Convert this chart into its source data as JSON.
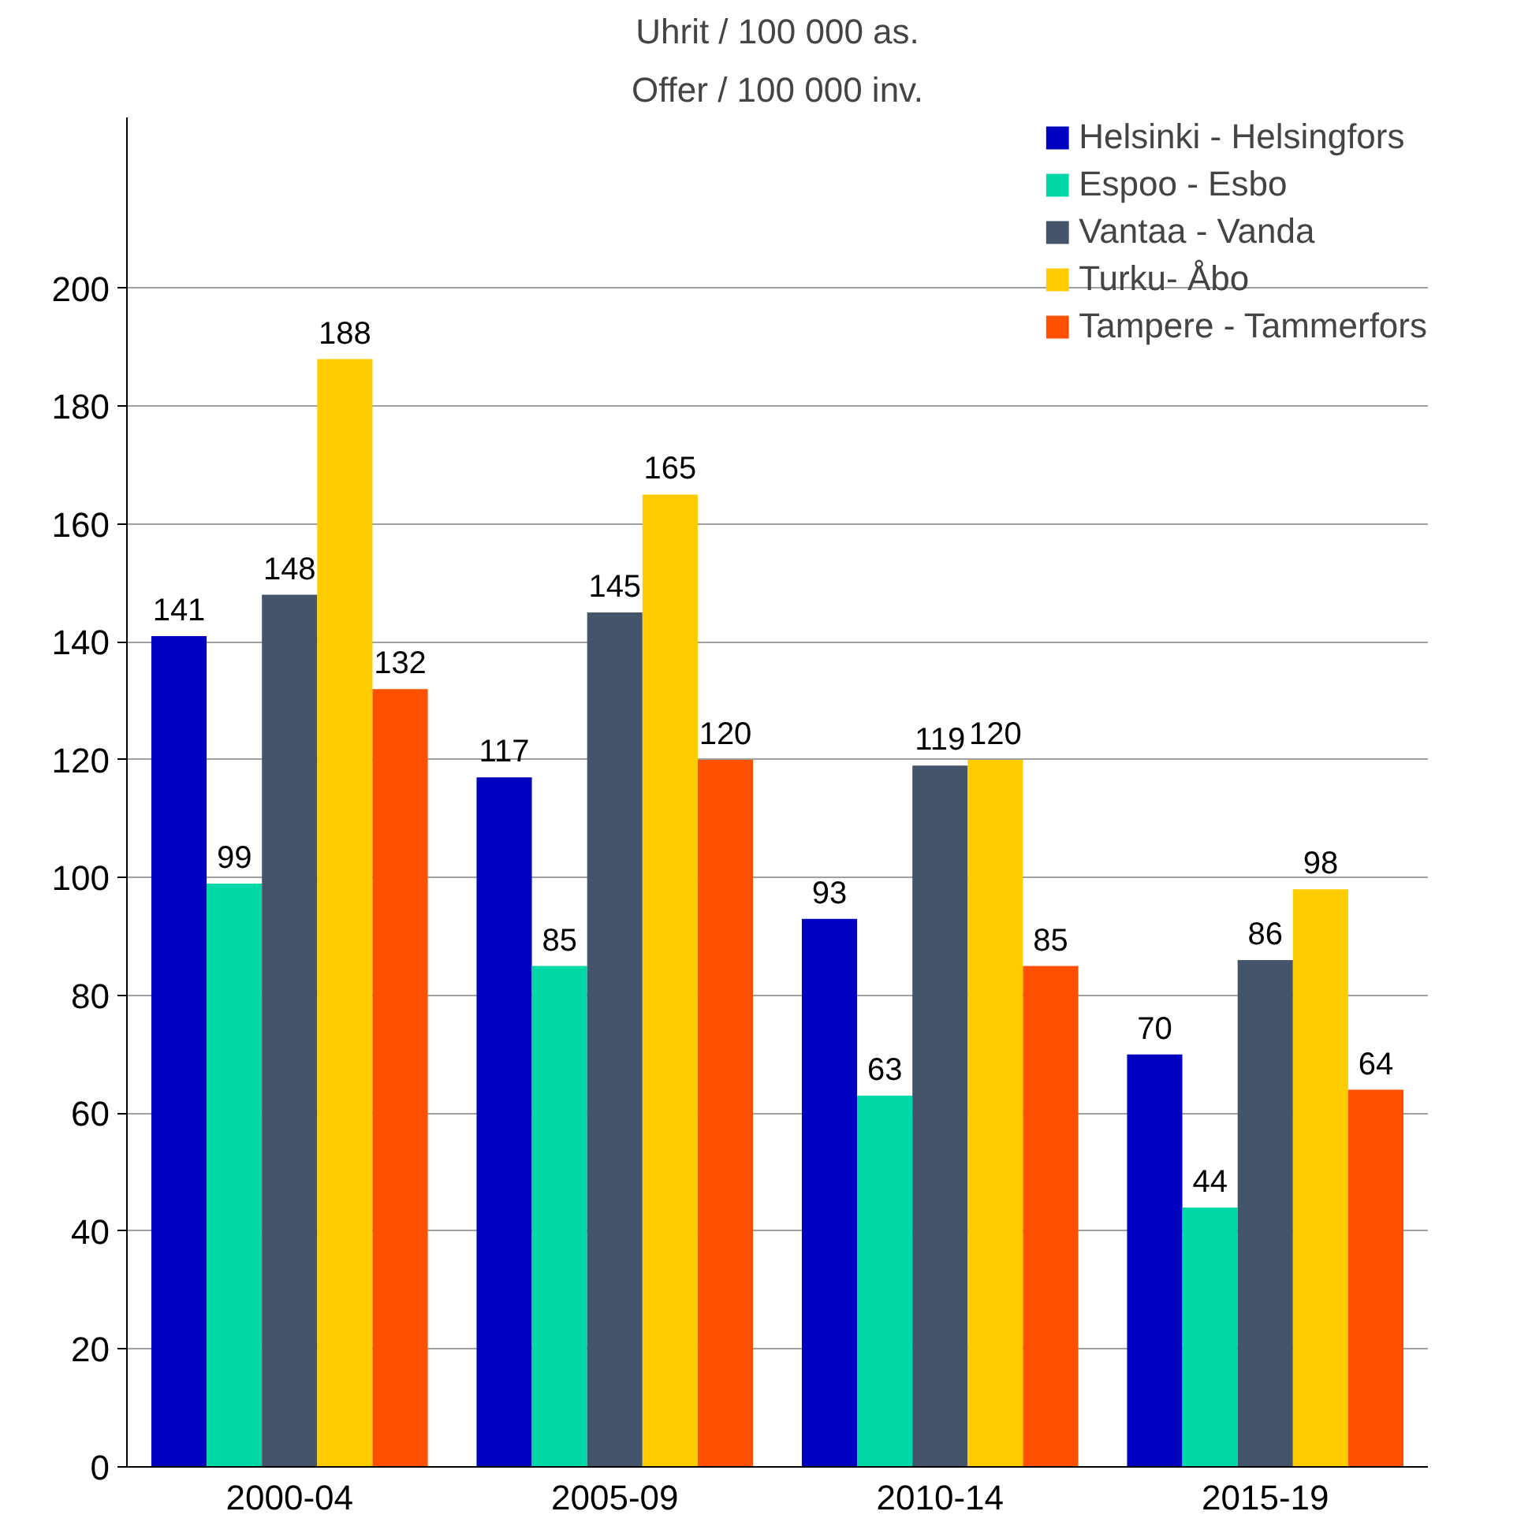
{
  "chart_data": {
    "type": "bar",
    "title": "Uhrit / 100 000 as.",
    "subtitle": "Offer / 100 000 inv.",
    "categories": [
      "2000-04",
      "2005-09",
      "2010-14",
      "2015-19"
    ],
    "series": [
      {
        "name": "Helsinki - Helsingfors",
        "color": "#0000c0",
        "values": [
          141,
          117,
          93,
          70
        ]
      },
      {
        "name": "Espoo - Esbo",
        "color": "#00d8a8",
        "values": [
          99,
          85,
          63,
          44
        ]
      },
      {
        "name": "Vantaa - Vanda",
        "color": "#44546a",
        "values": [
          148,
          145,
          119,
          86
        ]
      },
      {
        "name": "Turku- Åbo",
        "color": "#ffcc00",
        "values": [
          188,
          165,
          120,
          98
        ]
      },
      {
        "name": "Tampere - Tammerfors",
        "color": "#ff5000",
        "values": [
          132,
          120,
          85,
          64
        ]
      }
    ],
    "ylim": [
      0,
      229
    ],
    "yticks": [
      0,
      20,
      40,
      60,
      80,
      100,
      120,
      140,
      160,
      180,
      200
    ],
    "grid": "y",
    "legend": "top right",
    "data_labels": true
  }
}
